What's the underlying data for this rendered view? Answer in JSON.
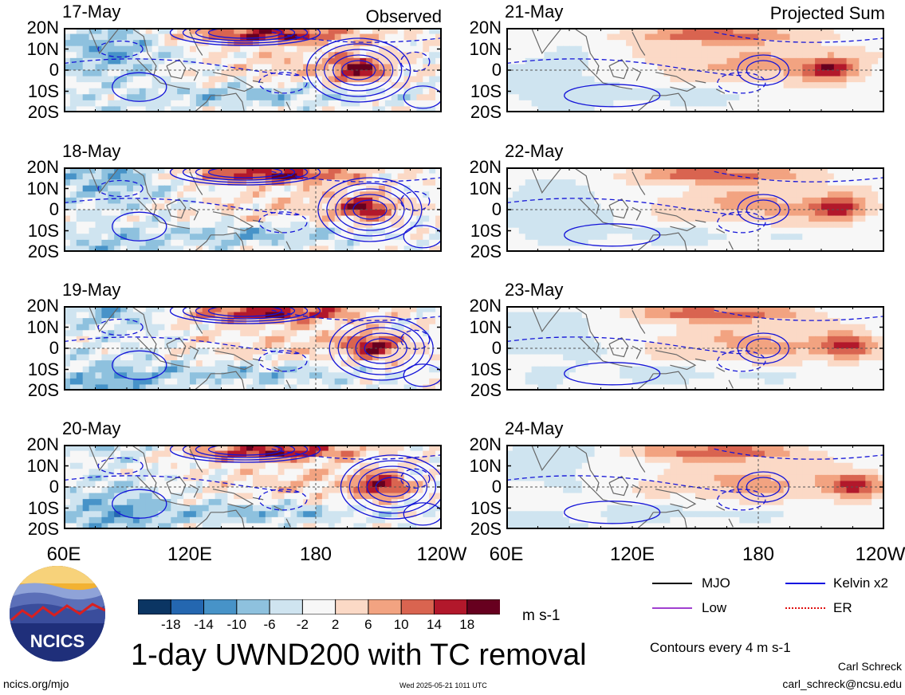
{
  "labels": {
    "observed": "Observed",
    "projected": "Projected Sum",
    "title": "1-day UWND200 with TC removal",
    "units": "m s-1",
    "contours": "Contours every 4 m s-1",
    "author": "Carl Schreck",
    "email": "carl_schreck@ncsu.edu",
    "url": "ncics.org/mjo",
    "timestamp": "Wed 2025-05-21 1011 UTC",
    "logo_text": "NCICS"
  },
  "legend": [
    {
      "label": "MJO",
      "color": "#000000"
    },
    {
      "label": "Kelvin x2",
      "color": "#1010e0"
    },
    {
      "label": "Low",
      "color": "#a040d0"
    },
    {
      "label": "ER",
      "color": "#e01010"
    }
  ],
  "chart_data": {
    "type": "heatmap",
    "variable": "UWND200",
    "yticks": [
      "20N",
      "10N",
      "0",
      "10S",
      "20S"
    ],
    "xticks": [
      "60E",
      "120E",
      "180",
      "120W"
    ],
    "colorbar": {
      "units": "m s-1",
      "tick_labels": [
        "-18",
        "-14",
        "-10",
        "-6",
        "-2",
        "2",
        "6",
        "10",
        "14",
        "18"
      ],
      "colors": [
        "#0b3563",
        "#2467b0",
        "#4793c8",
        "#8ec1de",
        "#cfe4f0",
        "#f7f7f7",
        "#fbd9c6",
        "#f2a381",
        "#d96450",
        "#b2182b",
        "#67001f"
      ]
    },
    "panels": [
      {
        "date": "17-May",
        "column": "Observed"
      },
      {
        "date": "18-May",
        "column": "Observed"
      },
      {
        "date": "19-May",
        "column": "Observed"
      },
      {
        "date": "20-May",
        "column": "Observed"
      },
      {
        "date": "21-May",
        "column": "Projected Sum"
      },
      {
        "date": "22-May",
        "column": "Projected Sum"
      },
      {
        "date": "23-May",
        "column": "Projected Sum"
      },
      {
        "date": "24-May",
        "column": "Projected Sum"
      }
    ]
  }
}
